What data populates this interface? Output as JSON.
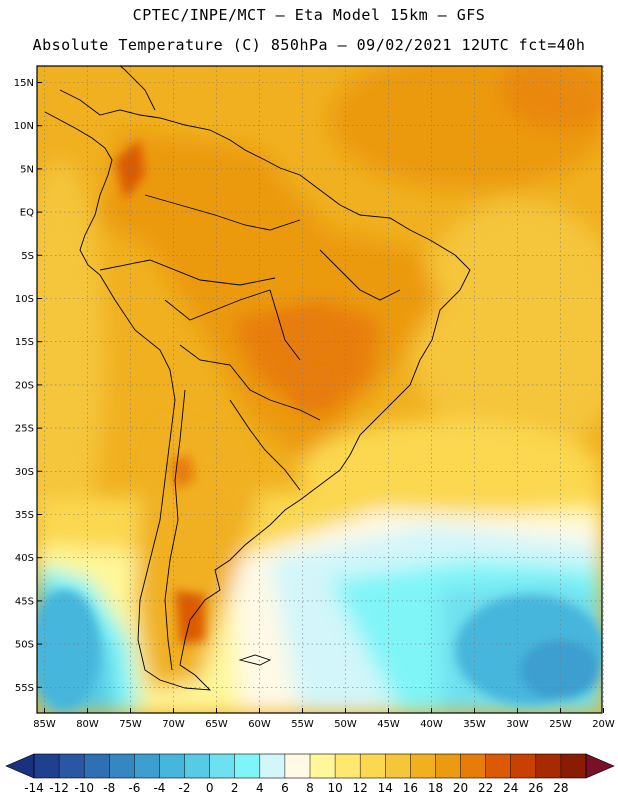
{
  "header": {
    "title_line1": "CPTEC/INPE/MCT –  Eta Model 15km – GFS",
    "title_line2": "Absolute Temperature (C) 850hPa – 09/02/2021 12UTC fct=40h"
  },
  "map": {
    "lat_labels": [
      "15N",
      "10N",
      "5N",
      "EQ",
      "5S",
      "10S",
      "15S",
      "20S",
      "25S",
      "30S",
      "35S",
      "40S",
      "45S",
      "50S",
      "55S"
    ],
    "lon_labels": [
      "85W",
      "80W",
      "75W",
      "70W",
      "65W",
      "60W",
      "55W",
      "50W",
      "45W",
      "40W",
      "35W",
      "30W",
      "25W",
      "20W"
    ]
  },
  "colorbar": {
    "ticks": [
      "-14",
      "-12",
      "-10",
      "-8",
      "-6",
      "-4",
      "-2",
      "0",
      "2",
      "4",
      "6",
      "8",
      "10",
      "12",
      "14",
      "16",
      "18",
      "20",
      "22",
      "24",
      "26",
      "28"
    ],
    "colors": [
      "#1f3f8f",
      "#2a56a3",
      "#2f6fb3",
      "#3687c1",
      "#3d9fcf",
      "#47b6dc",
      "#57cbe6",
      "#6fe0ef",
      "#80f5f8",
      "#d2f6fa",
      "#fff9e6",
      "#fff79a",
      "#ffe870",
      "#fbd850",
      "#f5c53a",
      "#f0b020",
      "#ec9a10",
      "#e77d08",
      "#dc5a04",
      "#c84002",
      "#a82a02",
      "#8a1c04"
    ]
  }
}
